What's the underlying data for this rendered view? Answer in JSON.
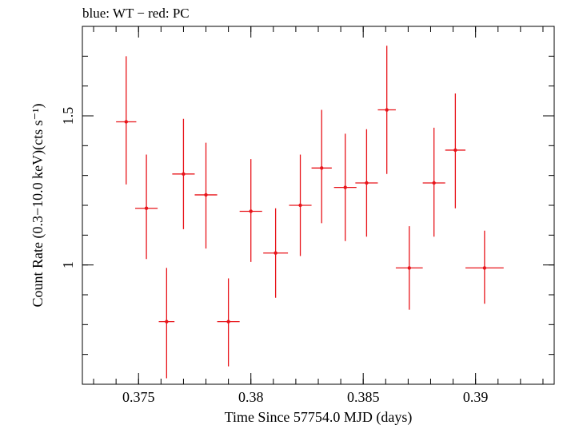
{
  "chart_data": {
    "type": "scatter",
    "title": "blue: WT − red: PC",
    "xlabel": "Time Since 57754.0 MJD (days)",
    "ylabel": "Count Rate (0.3−10.0 keV)(cts s⁻¹)",
    "xlim": [
      0.3725,
      0.3935
    ],
    "ylim": [
      0.6,
      1.8
    ],
    "x_ticks": [
      {
        "value": 0.375,
        "label": "0.375"
      },
      {
        "value": 0.38,
        "label": "0.38"
      },
      {
        "value": 0.385,
        "label": "0.385"
      },
      {
        "value": 0.39,
        "label": "0.39"
      }
    ],
    "y_ticks": [
      {
        "value": 1.0,
        "label": "1"
      },
      {
        "value": 1.5,
        "label": "1.5"
      }
    ],
    "grid": false,
    "series": [
      {
        "color": "#e8141a",
        "points": [
          {
            "x": 0.37445,
            "xerr": 0.00045,
            "y": 1.48,
            "ylo": 1.27,
            "yhi": 1.7
          },
          {
            "x": 0.37535,
            "xerr": 0.0005,
            "y": 1.19,
            "ylo": 1.02,
            "yhi": 1.37
          },
          {
            "x": 0.37625,
            "xerr": 0.00035,
            "y": 0.81,
            "ylo": 0.62,
            "yhi": 0.99
          },
          {
            "x": 0.377,
            "xerr": 0.0005,
            "y": 1.305,
            "ylo": 1.12,
            "yhi": 1.49
          },
          {
            "x": 0.378,
            "xerr": 0.0005,
            "y": 1.235,
            "ylo": 1.055,
            "yhi": 1.41
          },
          {
            "x": 0.379,
            "xerr": 0.0005,
            "y": 0.81,
            "ylo": 0.66,
            "yhi": 0.955
          },
          {
            "x": 0.38,
            "xerr": 0.0005,
            "y": 1.18,
            "ylo": 1.01,
            "yhi": 1.355
          },
          {
            "x": 0.3811,
            "xerr": 0.00055,
            "y": 1.04,
            "ylo": 0.89,
            "yhi": 1.19
          },
          {
            "x": 0.3822,
            "xerr": 0.0005,
            "y": 1.2,
            "ylo": 1.03,
            "yhi": 1.37
          },
          {
            "x": 0.38315,
            "xerr": 0.00045,
            "y": 1.325,
            "ylo": 1.14,
            "yhi": 1.52
          },
          {
            "x": 0.3842,
            "xerr": 0.0005,
            "y": 1.26,
            "ylo": 1.08,
            "yhi": 1.44
          },
          {
            "x": 0.38515,
            "xerr": 0.0005,
            "y": 1.275,
            "ylo": 1.095,
            "yhi": 1.455
          },
          {
            "x": 0.38605,
            "xerr": 0.0004,
            "y": 1.52,
            "ylo": 1.305,
            "yhi": 1.735
          },
          {
            "x": 0.38705,
            "xerr": 0.0006,
            "y": 0.99,
            "ylo": 0.85,
            "yhi": 1.13
          },
          {
            "x": 0.38815,
            "xerr": 0.0005,
            "y": 1.275,
            "ylo": 1.095,
            "yhi": 1.46
          },
          {
            "x": 0.3891,
            "xerr": 0.00045,
            "y": 1.385,
            "ylo": 1.19,
            "yhi": 1.575
          },
          {
            "x": 0.3904,
            "xerr": 0.00085,
            "y": 0.99,
            "ylo": 0.87,
            "yhi": 1.115
          }
        ]
      }
    ]
  }
}
